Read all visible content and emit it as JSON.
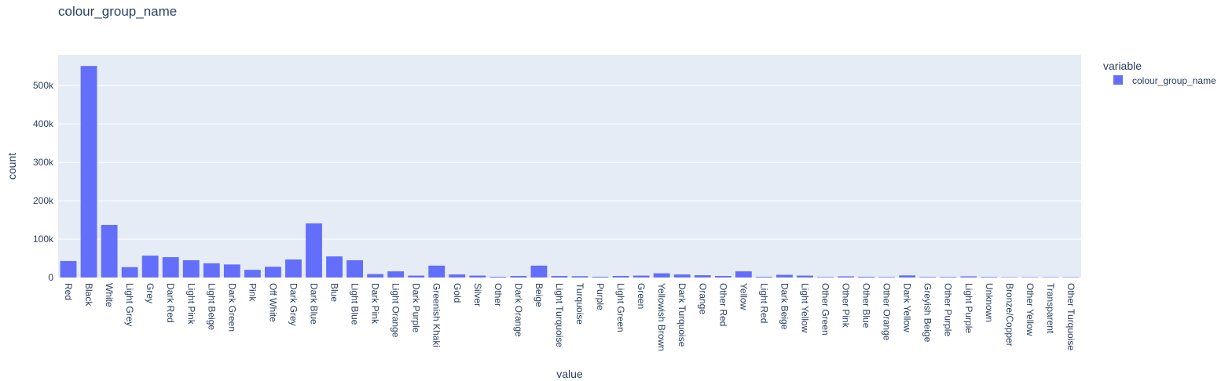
{
  "chart_data": {
    "type": "bar",
    "title": "colour_group_name",
    "xlabel": "value",
    "ylabel": "count",
    "ylim": [
      0,
      580000
    ],
    "yticks": [
      0,
      100000,
      200000,
      300000,
      400000,
      500000
    ],
    "ytick_labels": [
      "0",
      "100k",
      "200k",
      "300k",
      "400k",
      "500k"
    ],
    "legend": {
      "title": "variable",
      "position": "top-right"
    },
    "colors": {
      "bar": "#636efa",
      "plot_bg": "#e5ecf6",
      "grid": "#ffffff",
      "text": "#2a3f5f"
    },
    "categories": [
      "Red",
      "Black",
      "White",
      "Light Grey",
      "Grey",
      "Dark Red",
      "Light Pink",
      "Light Beige",
      "Dark Green",
      "Pink",
      "Off White",
      "Dark Grey",
      "Dark Blue",
      "Blue",
      "Light Blue",
      "Dark Pink",
      "Light Orange",
      "Dark Purple",
      "Greenish Khaki",
      "Gold",
      "Silver",
      "Other",
      "Dark Orange",
      "Beige",
      "Light Turquoise",
      "Turquoise",
      "Purple",
      "Light Green",
      "Green",
      "Yellowish Brown",
      "Dark Turquoise",
      "Orange",
      "Other Red",
      "Yellow",
      "Light Red",
      "Dark Beige",
      "Light Yellow",
      "Other Green",
      "Other Pink",
      "Other Blue",
      "Other Orange",
      "Dark Yellow",
      "Greyish Beige",
      "Other Purple",
      "Light Purple",
      "Unknown",
      "Bronze/Copper",
      "Other Yellow",
      "Transparent",
      "Other Turquoise"
    ],
    "series": [
      {
        "name": "colour_group_name",
        "values": [
          43000,
          551000,
          137000,
          27000,
          57000,
          53000,
          45000,
          37000,
          34000,
          20000,
          28000,
          47000,
          141000,
          55000,
          45000,
          9000,
          16000,
          5000,
          31000,
          8000,
          5000,
          2000,
          4000,
          31000,
          4000,
          3500,
          2000,
          4000,
          5000,
          11000,
          8000,
          6000,
          4000,
          16000,
          2000,
          7000,
          5000,
          1500,
          3000,
          2000,
          1500,
          5500,
          1500,
          1500,
          3000,
          1500,
          1000,
          1000,
          1000,
          1000
        ]
      }
    ]
  }
}
